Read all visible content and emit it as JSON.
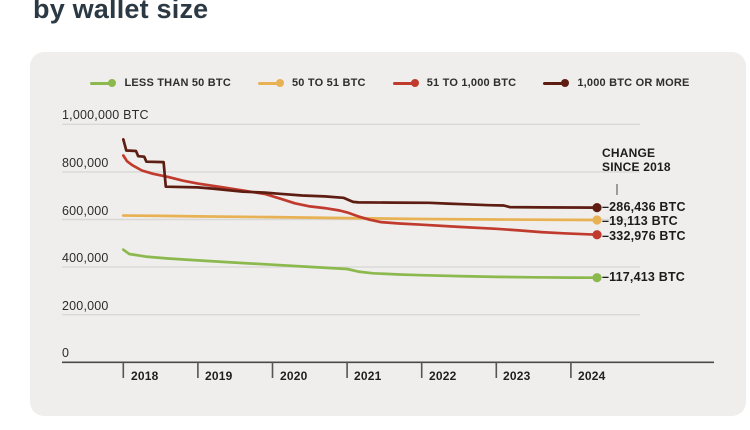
{
  "title": "by wallet size",
  "annotation": {
    "header": "CHANGE\nSINCE 2018"
  },
  "chart_data": {
    "type": "line",
    "title": "by wallet size",
    "grid": true,
    "legend_position": "top",
    "x_axis": {
      "years": [
        "2018",
        "2019",
        "2020",
        "2021",
        "2022",
        "2023",
        "2024"
      ],
      "range": [
        2018,
        2024.4
      ]
    },
    "y_axis": {
      "unit": "BTC",
      "tick_labels": [
        "1,000,000 BTC",
        "800,000",
        "600,000",
        "400,000",
        "200,000",
        "0"
      ],
      "tick_values": [
        1000000,
        800000,
        600000,
        400000,
        200000,
        0
      ],
      "range": [
        0,
        1000000
      ]
    },
    "series": [
      {
        "name": "LESS THAN 50 BTC",
        "color": "#8cb94e",
        "change_label": "–117,413 BTC",
        "change_since_2018": -117413,
        "points": [
          [
            2018.0,
            473000
          ],
          [
            2018.08,
            455000
          ],
          [
            2018.3,
            444000
          ],
          [
            2018.6,
            436000
          ],
          [
            2019.0,
            428000
          ],
          [
            2019.5,
            419000
          ],
          [
            2020.0,
            410000
          ],
          [
            2020.5,
            401000
          ],
          [
            2021.0,
            392000
          ],
          [
            2021.15,
            381000
          ],
          [
            2021.35,
            374000
          ],
          [
            2021.7,
            369000
          ],
          [
            2022.0,
            366000
          ],
          [
            2022.5,
            362000
          ],
          [
            2023.0,
            359000
          ],
          [
            2023.5,
            357000
          ],
          [
            2024.0,
            356000
          ],
          [
            2024.35,
            355587
          ]
        ]
      },
      {
        "name": "50 TO 51 BTC",
        "color": "#e8b254",
        "change_label": "–19,113 BTC",
        "change_since_2018": -19113,
        "points": [
          [
            2018.0,
            617000
          ],
          [
            2018.5,
            615000
          ],
          [
            2019.0,
            613000
          ],
          [
            2020.0,
            610000
          ],
          [
            2021.0,
            606000
          ],
          [
            2022.0,
            602000
          ],
          [
            2023.0,
            600000
          ],
          [
            2024.0,
            598200
          ],
          [
            2024.35,
            597887
          ]
        ]
      },
      {
        "name": "51 TO 1,000 BTC",
        "color": "#c03b2d",
        "change_label": "–332,976 BTC",
        "change_since_2018": -332976,
        "points": [
          [
            2018.0,
            869000
          ],
          [
            2018.05,
            845000
          ],
          [
            2018.12,
            828000
          ],
          [
            2018.25,
            806000
          ],
          [
            2018.4,
            792000
          ],
          [
            2018.6,
            779000
          ],
          [
            2018.8,
            763000
          ],
          [
            2019.0,
            751000
          ],
          [
            2019.3,
            737000
          ],
          [
            2019.6,
            722000
          ],
          [
            2019.9,
            707000
          ],
          [
            2020.1,
            688000
          ],
          [
            2020.3,
            668000
          ],
          [
            2020.5,
            655000
          ],
          [
            2020.7,
            648000
          ],
          [
            2020.9,
            638000
          ],
          [
            2021.0,
            630000
          ],
          [
            2021.15,
            613000
          ],
          [
            2021.3,
            599000
          ],
          [
            2021.45,
            589000
          ],
          [
            2021.7,
            583000
          ],
          [
            2022.0,
            578000
          ],
          [
            2022.5,
            569000
          ],
          [
            2023.0,
            561000
          ],
          [
            2023.3,
            554000
          ],
          [
            2023.6,
            547000
          ],
          [
            2023.9,
            542000
          ],
          [
            2024.35,
            536024
          ]
        ]
      },
      {
        "name": "1,000 BTC OR MORE",
        "color": "#5e1d12",
        "change_label": "–286,436 BTC",
        "change_since_2018": -286436,
        "points": [
          [
            2018.0,
            936436
          ],
          [
            2018.04,
            890000
          ],
          [
            2018.17,
            888000
          ],
          [
            2018.2,
            866000
          ],
          [
            2018.28,
            864000
          ],
          [
            2018.31,
            843000
          ],
          [
            2018.54,
            841000
          ],
          [
            2018.57,
            738000
          ],
          [
            2019.0,
            735000
          ],
          [
            2019.2,
            730000
          ],
          [
            2019.4,
            723000
          ],
          [
            2019.6,
            717000
          ],
          [
            2019.9,
            713000
          ],
          [
            2020.1,
            708000
          ],
          [
            2020.4,
            701000
          ],
          [
            2020.7,
            697000
          ],
          [
            2020.95,
            691000
          ],
          [
            2021.02,
            682000
          ],
          [
            2021.08,
            674000
          ],
          [
            2021.15,
            672000
          ],
          [
            2021.6,
            671000
          ],
          [
            2022.1,
            670000
          ],
          [
            2022.35,
            667000
          ],
          [
            2022.6,
            664000
          ],
          [
            2022.9,
            660000
          ],
          [
            2023.1,
            659000
          ],
          [
            2023.18,
            652000
          ],
          [
            2023.6,
            651000
          ],
          [
            2024.35,
            650000
          ]
        ]
      }
    ],
    "colors": {
      "card_background": "#efeeec",
      "grid_line": "#d9d8d5",
      "axis_line": "#4a4a4a",
      "title_text": "#2b3944"
    }
  }
}
